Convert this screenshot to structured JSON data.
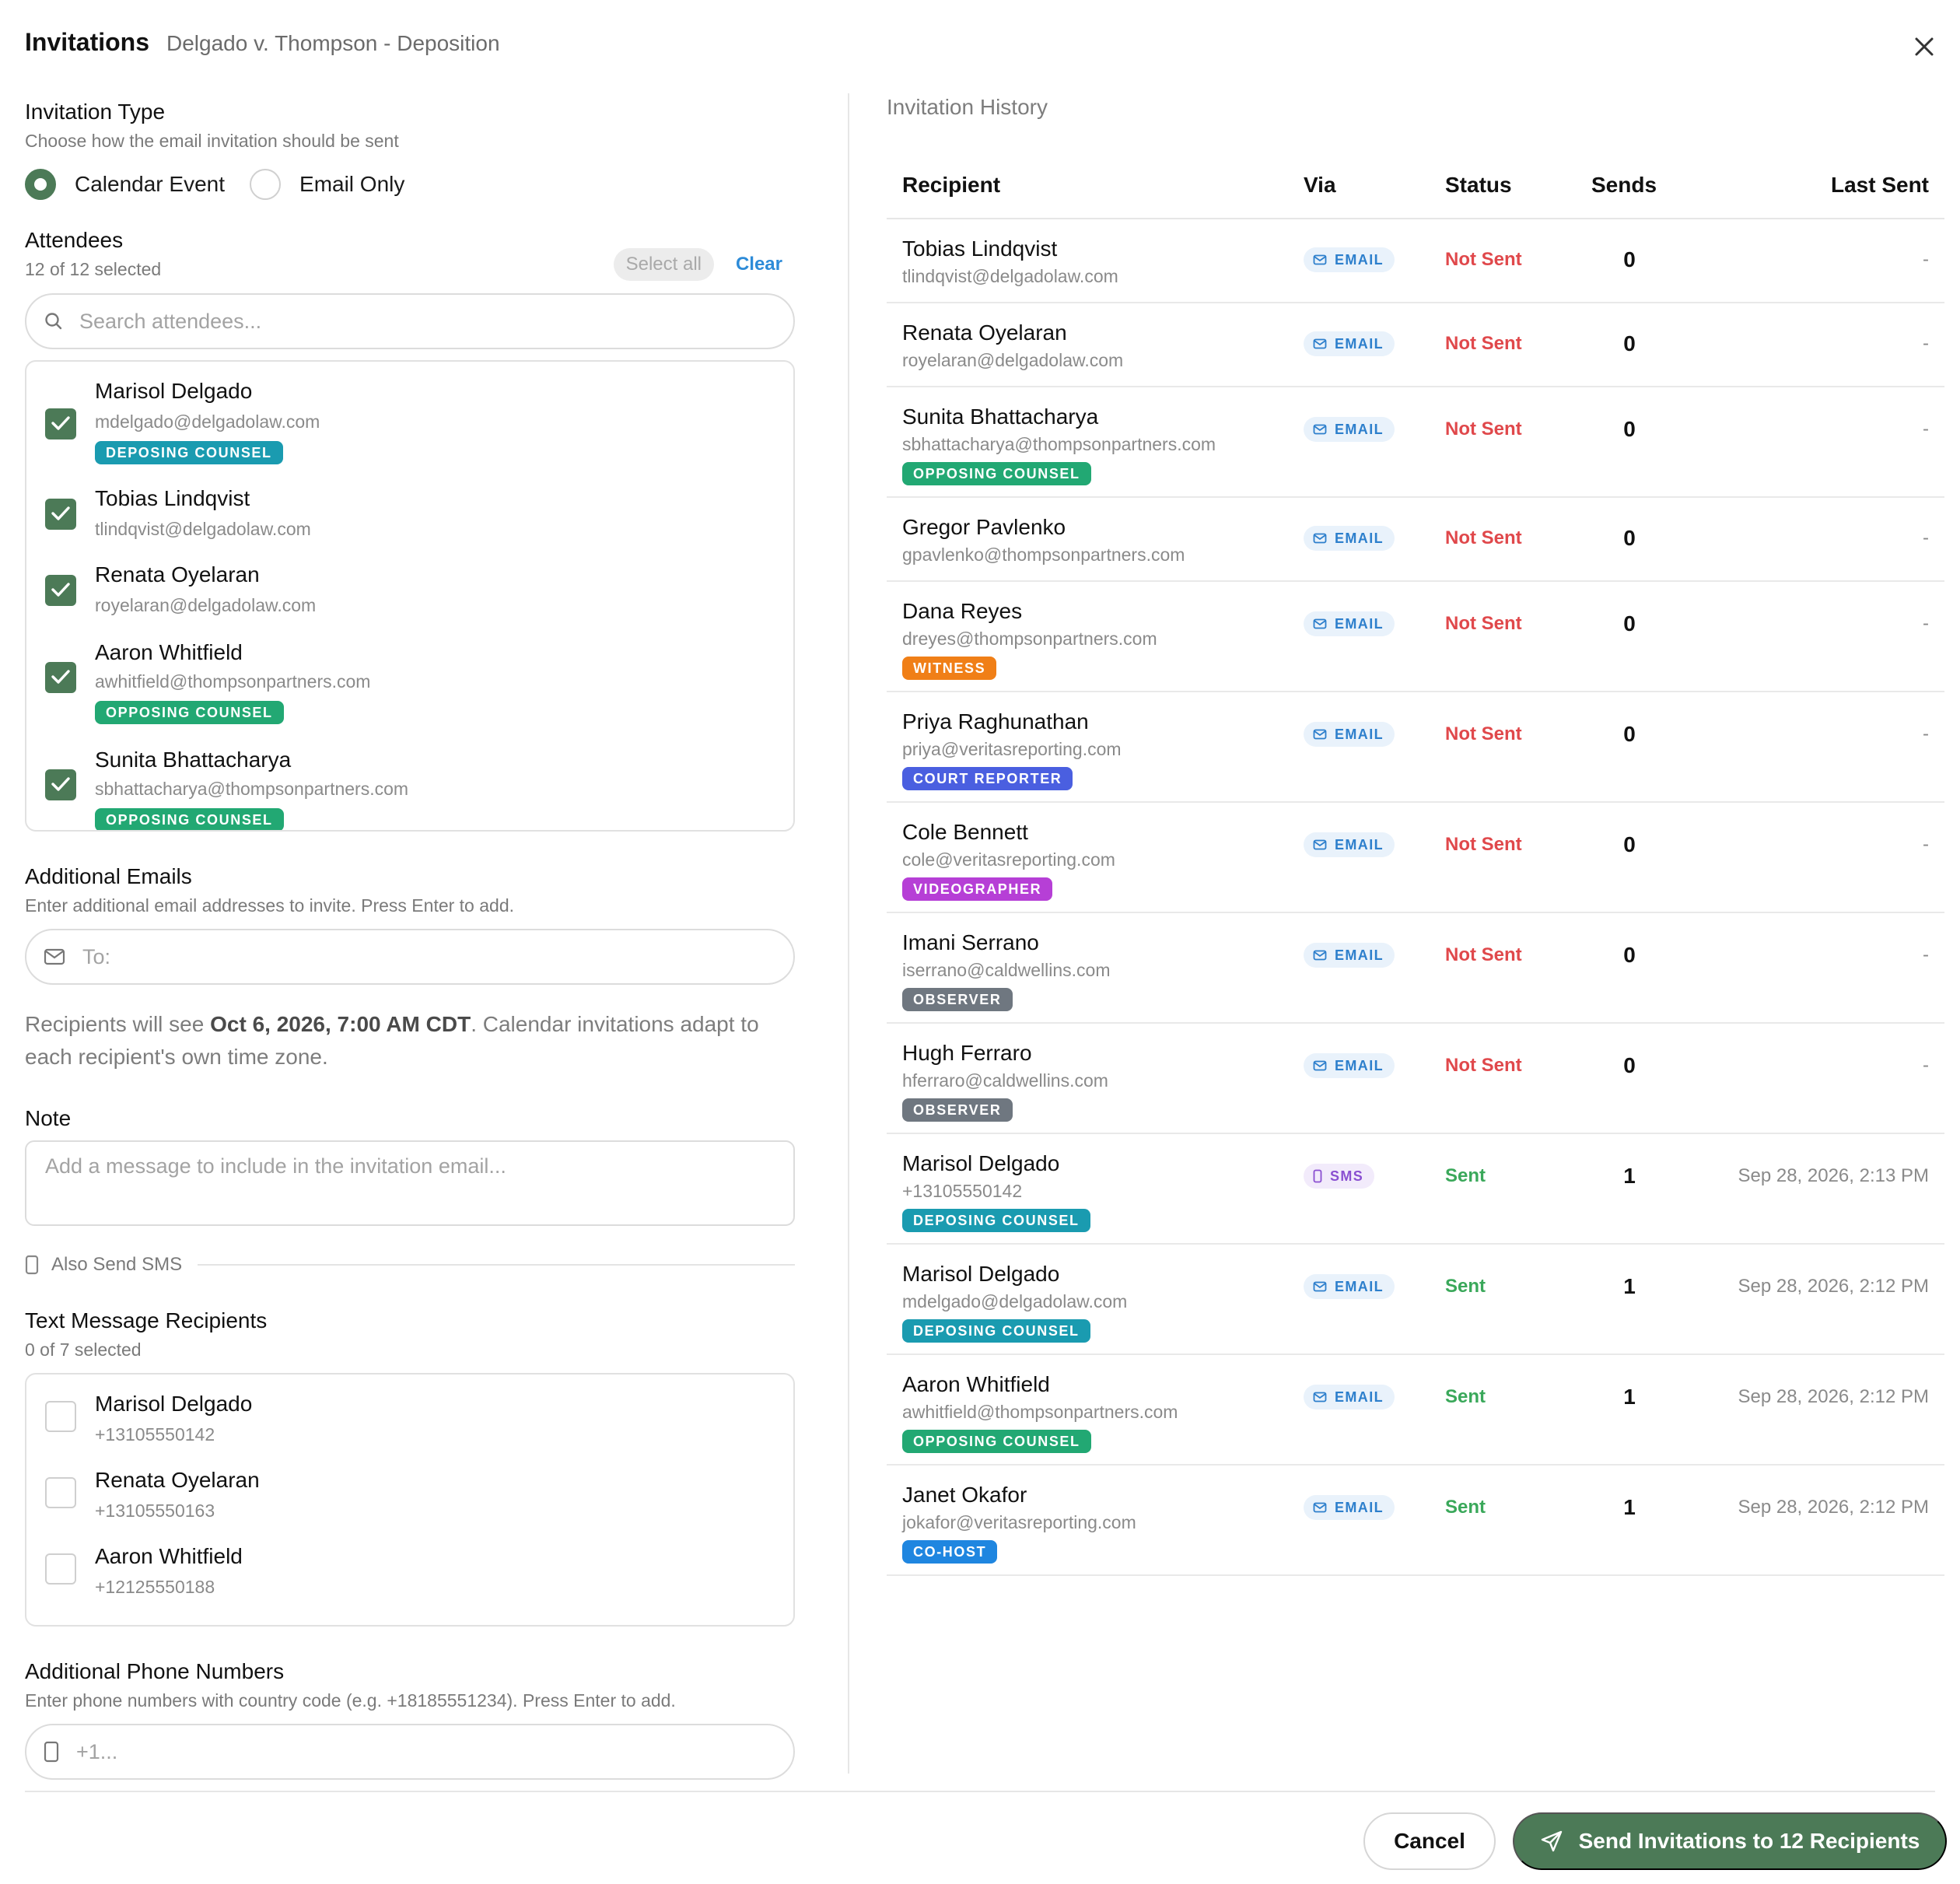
{
  "header": {
    "title": "Invitations",
    "subtitle": "Delgado v. Thompson - Deposition"
  },
  "invitation_type": {
    "title": "Invitation Type",
    "help": "Choose how the email invitation should be sent",
    "options": [
      {
        "label": "Calendar Event",
        "selected": true
      },
      {
        "label": "Email Only",
        "selected": false
      }
    ]
  },
  "attendees": {
    "title": "Attendees",
    "count_text": "12 of 12 selected",
    "select_all_label": "Select all",
    "clear_label": "Clear",
    "search_placeholder": "Search attendees...",
    "items": [
      {
        "name": "Marisol Delgado",
        "email": "mdelgado@delgadolaw.com",
        "role": "DEPOSING COUNSEL",
        "checked": true
      },
      {
        "name": "Tobias Lindqvist",
        "email": "tlindqvist@delgadolaw.com",
        "role": "",
        "checked": true
      },
      {
        "name": "Renata Oyelaran",
        "email": "royelaran@delgadolaw.com",
        "role": "",
        "checked": true
      },
      {
        "name": "Aaron Whitfield",
        "email": "awhitfield@thompsonpartners.com",
        "role": "OPPOSING COUNSEL",
        "checked": true
      },
      {
        "name": "Sunita Bhattacharya",
        "email": "sbhattacharya@thompsonpartners.com",
        "role": "OPPOSING COUNSEL",
        "checked": true
      }
    ]
  },
  "additional_emails": {
    "title": "Additional Emails",
    "help": "Enter additional email addresses to invite. Press Enter to add.",
    "placeholder": "To:"
  },
  "timezone_note": {
    "prefix": "Recipients will see ",
    "datetime": "Oct 6, 2026, 7:00 AM CDT",
    "suffix": ". Calendar invitations adapt to each recipient's own time zone."
  },
  "note": {
    "title": "Note",
    "placeholder": "Add a message to include in the invitation email..."
  },
  "sms_toggle_label": "Also Send SMS",
  "text_recipients": {
    "title": "Text Message Recipients",
    "count_text": "0 of 7 selected",
    "items": [
      {
        "name": "Marisol Delgado",
        "phone": "+13105550142",
        "checked": false
      },
      {
        "name": "Renata Oyelaran",
        "phone": "+13105550163",
        "checked": false
      },
      {
        "name": "Aaron Whitfield",
        "phone": "+12125550188",
        "checked": false
      }
    ]
  },
  "additional_phones": {
    "title": "Additional Phone Numbers",
    "help": "Enter phone numbers with country code (e.g. +18185551234). Press Enter to add.",
    "placeholder": "+1..."
  },
  "history": {
    "title": "Invitation History",
    "columns": {
      "recipient": "Recipient",
      "via": "Via",
      "status": "Status",
      "sends": "Sends",
      "last_sent": "Last Sent"
    },
    "rows": [
      {
        "name": "Tobias Lindqvist",
        "contact": "tlindqvist@delgadolaw.com",
        "role": "",
        "via": "EMAIL",
        "status": "Not Sent",
        "sends": "0",
        "last_sent": "-"
      },
      {
        "name": "Renata Oyelaran",
        "contact": "royelaran@delgadolaw.com",
        "role": "",
        "via": "EMAIL",
        "status": "Not Sent",
        "sends": "0",
        "last_sent": "-"
      },
      {
        "name": "Sunita Bhattacharya",
        "contact": "sbhattacharya@thompsonpartners.com",
        "role": "OPPOSING COUNSEL",
        "via": "EMAIL",
        "status": "Not Sent",
        "sends": "0",
        "last_sent": "-"
      },
      {
        "name": "Gregor Pavlenko",
        "contact": "gpavlenko@thompsonpartners.com",
        "role": "",
        "via": "EMAIL",
        "status": "Not Sent",
        "sends": "0",
        "last_sent": "-"
      },
      {
        "name": "Dana Reyes",
        "contact": "dreyes@thompsonpartners.com",
        "role": "WITNESS",
        "via": "EMAIL",
        "status": "Not Sent",
        "sends": "0",
        "last_sent": "-"
      },
      {
        "name": "Priya Raghunathan",
        "contact": "priya@veritasreporting.com",
        "role": "COURT REPORTER",
        "via": "EMAIL",
        "status": "Not Sent",
        "sends": "0",
        "last_sent": "-"
      },
      {
        "name": "Cole Bennett",
        "contact": "cole@veritasreporting.com",
        "role": "VIDEOGRAPHER",
        "via": "EMAIL",
        "status": "Not Sent",
        "sends": "0",
        "last_sent": "-"
      },
      {
        "name": "Imani Serrano",
        "contact": "iserrano@caldwellins.com",
        "role": "OBSERVER",
        "via": "EMAIL",
        "status": "Not Sent",
        "sends": "0",
        "last_sent": "-"
      },
      {
        "name": "Hugh Ferraro",
        "contact": "hferraro@caldwellins.com",
        "role": "OBSERVER",
        "via": "EMAIL",
        "status": "Not Sent",
        "sends": "0",
        "last_sent": "-"
      },
      {
        "name": "Marisol Delgado",
        "contact": "+13105550142",
        "role": "DEPOSING COUNSEL",
        "via": "SMS",
        "status": "Sent",
        "sends": "1",
        "last_sent": "Sep 28, 2026, 2:13 PM"
      },
      {
        "name": "Marisol Delgado",
        "contact": "mdelgado@delgadolaw.com",
        "role": "DEPOSING COUNSEL",
        "via": "EMAIL",
        "status": "Sent",
        "sends": "1",
        "last_sent": "Sep 28, 2026, 2:12 PM"
      },
      {
        "name": "Aaron Whitfield",
        "contact": "awhitfield@thompsonpartners.com",
        "role": "OPPOSING COUNSEL",
        "via": "EMAIL",
        "status": "Sent",
        "sends": "1",
        "last_sent": "Sep 28, 2026, 2:12 PM"
      },
      {
        "name": "Janet Okafor",
        "contact": "jokafor@veritasreporting.com",
        "role": "CO-HOST",
        "via": "EMAIL",
        "status": "Sent",
        "sends": "1",
        "last_sent": "Sep 28, 2026, 2:12 PM"
      }
    ]
  },
  "role_colors": {
    "DEPOSING COUNSEL": "#1a9bb0",
    "OPPOSING COUNSEL": "#22a873",
    "WITNESS": "#f07f17",
    "COURT REPORTER": "#4a5fe0",
    "VIDEOGRAPHER": "#b63fd6",
    "OBSERVER": "#6f7780",
    "CO-HOST": "#1f86e0"
  },
  "footer": {
    "cancel_label": "Cancel",
    "send_label": "Send Invitations to 12 Recipients"
  },
  "colors": {
    "accent": "#4c7a57",
    "link": "#2d8bd8",
    "not_sent": "#e0484b",
    "sent": "#3aa85a"
  }
}
